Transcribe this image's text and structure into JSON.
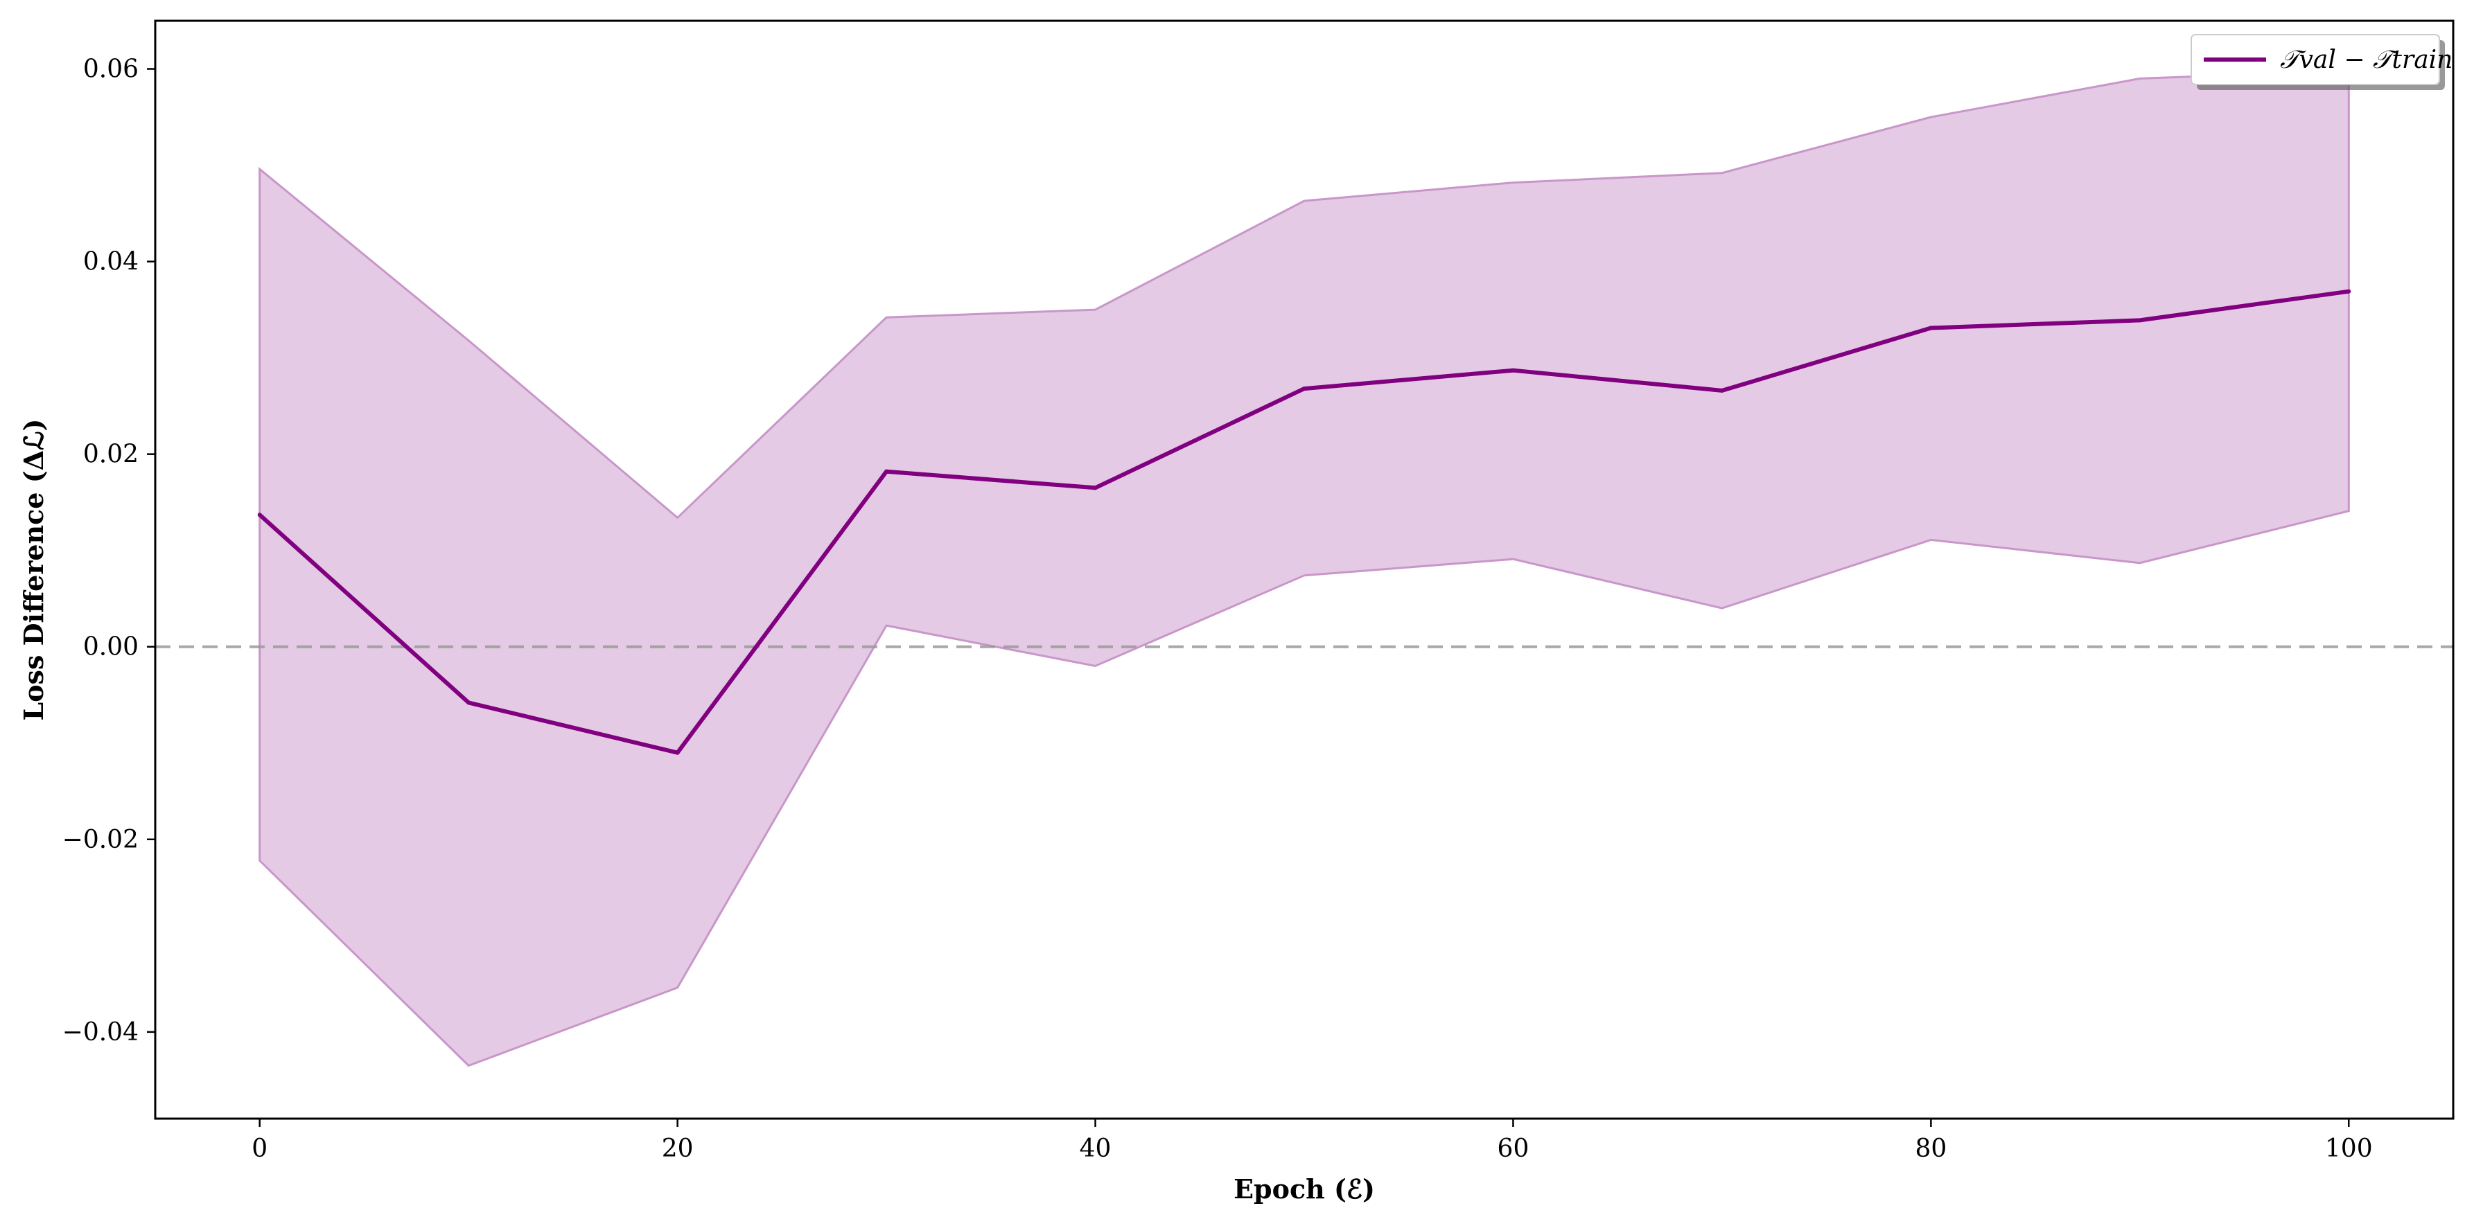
{
  "chart_data": {
    "type": "line",
    "title": "",
    "xlabel": "Epoch (ℰ)",
    "ylabel": "Loss Difference (Δℒ)",
    "xlim": [
      -5,
      105
    ],
    "ylim": [
      -0.049,
      0.065
    ],
    "xticks": [
      0,
      20,
      40,
      60,
      80,
      100
    ],
    "yticks": [
      -0.04,
      -0.02,
      0.0,
      0.02,
      0.04,
      0.06
    ],
    "xtick_labels": [
      "0",
      "20",
      "40",
      "60",
      "80",
      "100"
    ],
    "ytick_labels": [
      "−0.04",
      "−0.02",
      "0.00",
      "0.02",
      "0.04",
      "0.06"
    ],
    "x": [
      0,
      10,
      20,
      30,
      40,
      50,
      60,
      70,
      80,
      90,
      100
    ],
    "series": [
      {
        "name": "𝒯val − 𝒯train",
        "color": "#800080",
        "values": [
          0.0137,
          -0.0058,
          -0.011,
          0.0182,
          0.0165,
          0.0268,
          0.0287,
          0.0266,
          0.0331,
          0.0339,
          0.0369
        ],
        "band_lower": [
          -0.0222,
          -0.0435,
          -0.0354,
          0.0022,
          -0.002,
          0.0074,
          0.0091,
          0.004,
          0.0111,
          0.0087,
          0.0141
        ],
        "band_upper": [
          0.0496,
          0.0318,
          0.0134,
          0.0342,
          0.035,
          0.0463,
          0.0482,
          0.0492,
          0.055,
          0.059,
          0.0598
        ],
        "band_color": "#c996c9"
      }
    ],
    "reference_line": {
      "y": 0.0,
      "style": "dashed",
      "color": "#999999"
    },
    "grid": false,
    "legend": {
      "placement": "top-right",
      "entries": [
        "𝒯val − 𝒯train"
      ]
    }
  }
}
